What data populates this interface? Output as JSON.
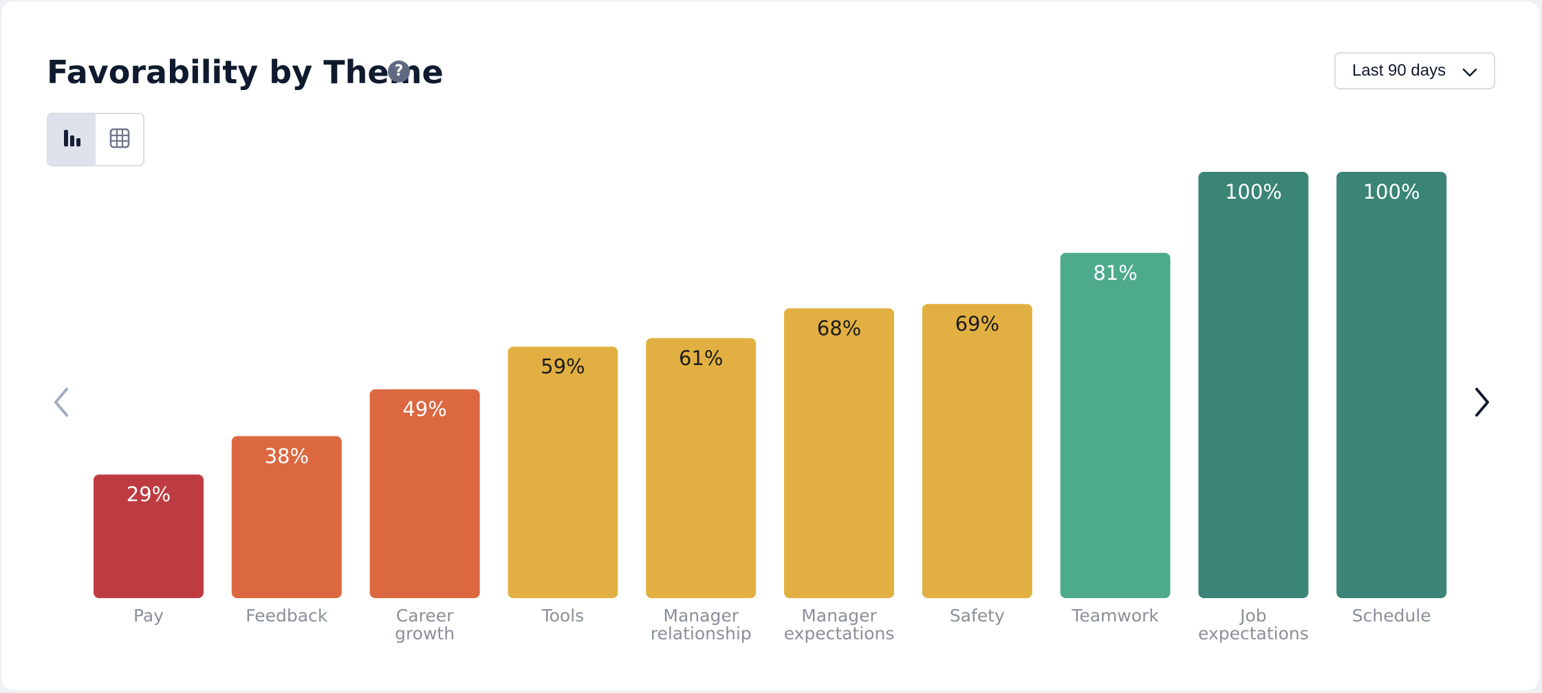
{
  "header": {
    "title": "Favorability by Theme",
    "help_symbol": "?",
    "help_icon": "help-circle-icon",
    "range_select": {
      "value": "Last 90 days",
      "icon": "chevron-down-icon"
    }
  },
  "view_toggle": {
    "options": [
      {
        "icon": "bar-chart-icon",
        "active": true
      },
      {
        "icon": "table-grid-icon",
        "active": false
      }
    ]
  },
  "pager": {
    "prev_icon": "chevron-left-icon",
    "next_icon": "chevron-right-icon"
  },
  "colors": {
    "low": "#be3b42",
    "mid_low": "#db6840",
    "mid": "#e2b042",
    "high": "#4eaa8c",
    "top": "#3a8575",
    "label_dark": "#1c1c1c",
    "label_light": "#ffffff"
  },
  "chart_data": {
    "type": "bar",
    "title": "Favorability by Theme",
    "xlabel": "",
    "ylabel": "",
    "ylim": [
      0,
      100
    ],
    "grid": false,
    "categories": [
      [
        "Pay"
      ],
      [
        "Feedback"
      ],
      [
        "Career",
        "growth"
      ],
      [
        "Tools"
      ],
      [
        "Manager",
        "relationship"
      ],
      [
        "Manager",
        "expectations"
      ],
      [
        "Safety"
      ],
      [
        "Teamwork"
      ],
      [
        "Job",
        "expectations"
      ],
      [
        "Schedule"
      ]
    ],
    "values": [
      29,
      38,
      49,
      59,
      61,
      68,
      69,
      81,
      100,
      100
    ],
    "value_labels": [
      "29%",
      "38%",
      "49%",
      "59%",
      "61%",
      "68%",
      "69%",
      "81%",
      "100%",
      "100%"
    ],
    "bar_color_keys": [
      "low",
      "mid_low",
      "mid_low",
      "mid",
      "mid",
      "mid",
      "mid",
      "high",
      "top",
      "top"
    ],
    "label_color_keys": [
      "label_light",
      "label_light",
      "label_light",
      "label_dark",
      "label_dark",
      "label_dark",
      "label_dark",
      "label_light",
      "label_light",
      "label_light"
    ]
  }
}
